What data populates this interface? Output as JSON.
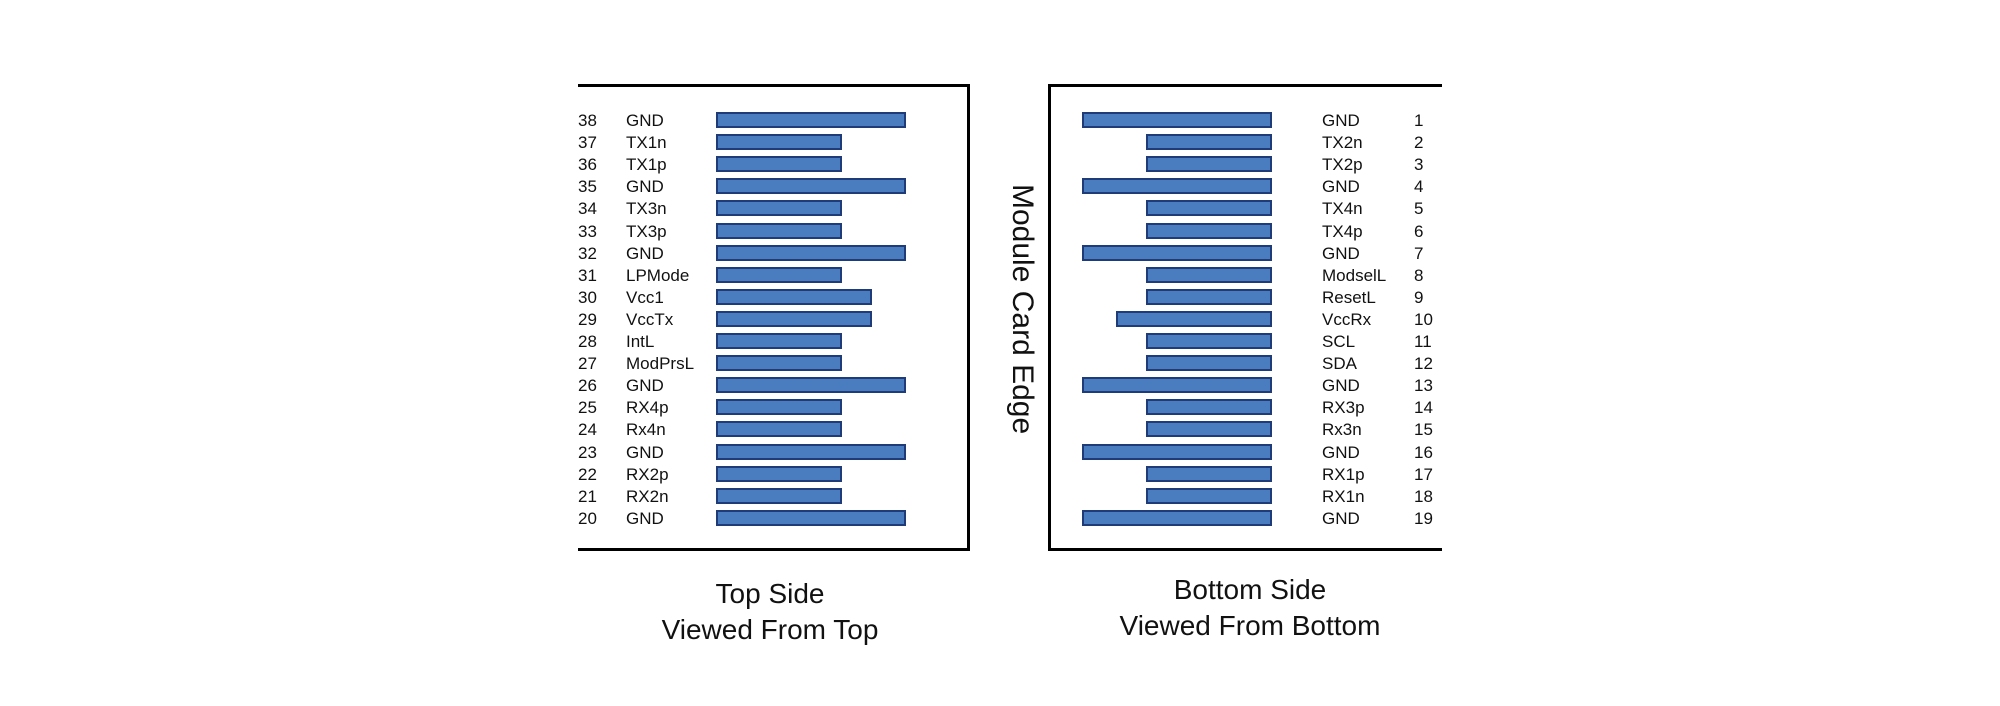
{
  "center_label": "Module Card Edge",
  "top_side": {
    "caption_line1": "Top Side",
    "caption_line2": "Viewed From Top",
    "pins": [
      {
        "num": "38",
        "name": "GND",
        "length": "long"
      },
      {
        "num": "37",
        "name": "TX1n",
        "length": "short"
      },
      {
        "num": "36",
        "name": "TX1p",
        "length": "short"
      },
      {
        "num": "35",
        "name": "GND",
        "length": "long"
      },
      {
        "num": "34",
        "name": "TX3n",
        "length": "short"
      },
      {
        "num": "33",
        "name": "TX3p",
        "length": "short"
      },
      {
        "num": "32",
        "name": "GND",
        "length": "long"
      },
      {
        "num": "31",
        "name": "LPMode",
        "length": "short"
      },
      {
        "num": "30",
        "name": "Vcc1",
        "length": "medium"
      },
      {
        "num": "29",
        "name": "VccTx",
        "length": "medium"
      },
      {
        "num": "28",
        "name": "IntL",
        "length": "short"
      },
      {
        "num": "27",
        "name": "ModPrsL",
        "length": "short"
      },
      {
        "num": "26",
        "name": "GND",
        "length": "long"
      },
      {
        "num": "25",
        "name": "RX4p",
        "length": "short"
      },
      {
        "num": "24",
        "name": "Rx4n",
        "length": "short"
      },
      {
        "num": "23",
        "name": "GND",
        "length": "long"
      },
      {
        "num": "22",
        "name": "RX2p",
        "length": "short"
      },
      {
        "num": "21",
        "name": "RX2n",
        "length": "short"
      },
      {
        "num": "20",
        "name": "GND",
        "length": "long"
      }
    ]
  },
  "bottom_side": {
    "caption_line1": "Bottom Side",
    "caption_line2": "Viewed From Bottom",
    "pins": [
      {
        "num": "1",
        "name": "GND",
        "length": "long"
      },
      {
        "num": "2",
        "name": "TX2n",
        "length": "short"
      },
      {
        "num": "3",
        "name": "TX2p",
        "length": "short"
      },
      {
        "num": "4",
        "name": "GND",
        "length": "long"
      },
      {
        "num": "5",
        "name": "TX4n",
        "length": "short"
      },
      {
        "num": "6",
        "name": "TX4p",
        "length": "short"
      },
      {
        "num": "7",
        "name": "GND",
        "length": "long"
      },
      {
        "num": "8",
        "name": "ModselL",
        "length": "short"
      },
      {
        "num": "9",
        "name": "ResetL",
        "length": "short"
      },
      {
        "num": "10",
        "name": "VccRx",
        "length": "medium"
      },
      {
        "num": "11",
        "name": "SCL",
        "length": "short"
      },
      {
        "num": "12",
        "name": "SDA",
        "length": "short"
      },
      {
        "num": "13",
        "name": "GND",
        "length": "long"
      },
      {
        "num": "14",
        "name": "RX3p",
        "length": "short"
      },
      {
        "num": "15",
        "name": "Rx3n",
        "length": "short"
      },
      {
        "num": "16",
        "name": "GND",
        "length": "long"
      },
      {
        "num": "17",
        "name": "RX1p",
        "length": "short"
      },
      {
        "num": "18",
        "name": "RX1n",
        "length": "short"
      },
      {
        "num": "19",
        "name": "GND",
        "length": "long"
      }
    ]
  },
  "colors": {
    "pad_fill": "#4a7cc0",
    "pad_border": "#1f3c78"
  }
}
